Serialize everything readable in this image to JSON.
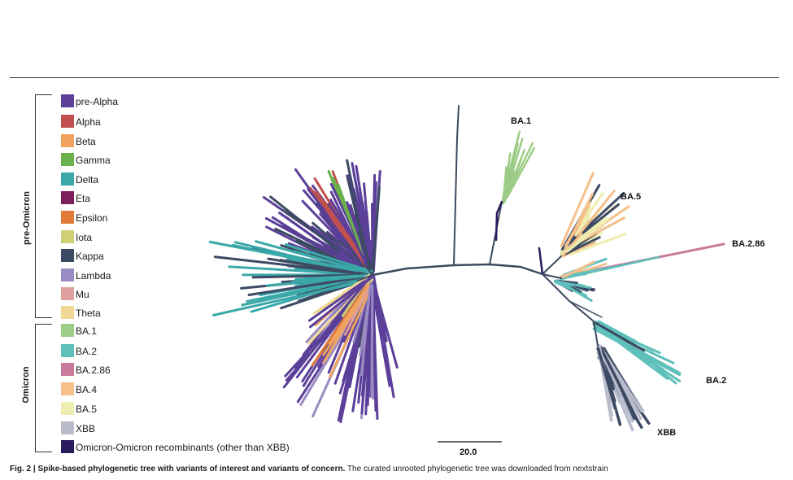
{
  "legend": {
    "groups": [
      {
        "label": "pre-Omicron"
      },
      {
        "label": "Omicron"
      }
    ],
    "items": [
      {
        "label": "pre-Alpha",
        "color": "#5b3f99"
      },
      {
        "label": "Alpha",
        "color": "#c0504d"
      },
      {
        "label": "Beta",
        "color": "#f0a35e"
      },
      {
        "label": "Gamma",
        "color": "#6ab04c"
      },
      {
        "label": "Delta",
        "color": "#3aa8a8"
      },
      {
        "label": "Eta",
        "color": "#7a1f5c"
      },
      {
        "label": "Epsilon",
        "color": "#e07b39"
      },
      {
        "label": "Iota",
        "color": "#cfcf78"
      },
      {
        "label": "Kappa",
        "color": "#3d4a63"
      },
      {
        "label": "Lambda",
        "color": "#9a8cc2"
      },
      {
        "label": "Mu",
        "color": "#dfa0a0"
      },
      {
        "label": "Theta",
        "color": "#f2d896"
      },
      {
        "label": "BA.1",
        "color": "#9ccc85"
      },
      {
        "label": "BA.2",
        "color": "#5fc0bb"
      },
      {
        "label": "BA.2.86",
        "color": "#c97a9c"
      },
      {
        "label": "BA.4",
        "color": "#f5c08a"
      },
      {
        "label": "BA.5",
        "color": "#eeeeb0"
      },
      {
        "label": "XBB",
        "color": "#b8bccc"
      },
      {
        "label": "Omicron-Omicron recombinants (other than XBB)",
        "color": "#2a1a5e"
      }
    ]
  },
  "tree": {
    "clade_labels": [
      "BA.1",
      "BA.5",
      "BA.2.86",
      "BA.2",
      "XBB"
    ],
    "scale_bar": "20.0",
    "backbone_color": "#3b4a5c"
  },
  "caption": {
    "bold": "Fig. 2 | Spike-based phylogenetic tree with variants of interest and variants of concern.",
    "text": " The curated unrooted phylogenetic tree was downloaded from nextstrain"
  }
}
